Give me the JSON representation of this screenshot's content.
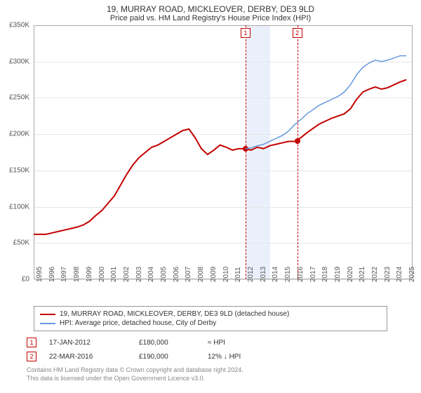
{
  "title": "19, MURRAY ROAD, MICKLEOVER, DERBY, DE3 9LD",
  "subtitle": "Price paid vs. HM Land Registry's House Price Index (HPI)",
  "chart": {
    "type": "line",
    "background_color": "#ffffff",
    "grid_color": "#e6e6e6",
    "y": {
      "min": 0,
      "max": 350000,
      "step": 50000,
      "ticks": [
        "£0",
        "£50K",
        "£100K",
        "£150K",
        "£200K",
        "£250K",
        "£300K",
        "£350K"
      ],
      "label_fontsize": 10
    },
    "x": {
      "min": 1995,
      "max": 2025.5,
      "years": [
        1995,
        1996,
        1997,
        1998,
        1999,
        2000,
        2001,
        2002,
        2003,
        2004,
        2005,
        2006,
        2007,
        2008,
        2009,
        2010,
        2011,
        2012,
        2013,
        2014,
        2015,
        2016,
        2017,
        2018,
        2019,
        2020,
        2021,
        2022,
        2023,
        2024,
        2025
      ],
      "label_fontsize": 10
    },
    "shade": {
      "from_year": 2012.05,
      "to_year": 2014.05,
      "color": "#eaf0fb"
    },
    "series": [
      {
        "name": "property",
        "color": "#c40000",
        "width": 2,
        "points": [
          [
            1995,
            62000
          ],
          [
            1995.5,
            62000
          ],
          [
            1996,
            62000
          ],
          [
            1996.5,
            64000
          ],
          [
            1997,
            66000
          ],
          [
            1997.5,
            68000
          ],
          [
            1998,
            70000
          ],
          [
            1998.5,
            72000
          ],
          [
            1999,
            75000
          ],
          [
            1999.5,
            80000
          ],
          [
            2000,
            88000
          ],
          [
            2000.5,
            95000
          ],
          [
            2001,
            105000
          ],
          [
            2001.5,
            115000
          ],
          [
            2002,
            130000
          ],
          [
            2002.5,
            145000
          ],
          [
            2003,
            158000
          ],
          [
            2003.5,
            168000
          ],
          [
            2004,
            175000
          ],
          [
            2004.5,
            182000
          ],
          [
            2005,
            185000
          ],
          [
            2005.5,
            190000
          ],
          [
            2006,
            195000
          ],
          [
            2006.5,
            200000
          ],
          [
            2007,
            205000
          ],
          [
            2007.5,
            207000
          ],
          [
            2008,
            195000
          ],
          [
            2008.5,
            180000
          ],
          [
            2009,
            172000
          ],
          [
            2009.5,
            178000
          ],
          [
            2010,
            185000
          ],
          [
            2010.5,
            182000
          ],
          [
            2011,
            178000
          ],
          [
            2011.5,
            180000
          ],
          [
            2012,
            180000
          ],
          [
            2012.5,
            178000
          ],
          [
            2013,
            182000
          ],
          [
            2013.5,
            180000
          ],
          [
            2014,
            184000
          ],
          [
            2014.5,
            186000
          ],
          [
            2015,
            188000
          ],
          [
            2015.5,
            190000
          ],
          [
            2016,
            190000
          ],
          [
            2016.5,
            195000
          ],
          [
            2017,
            202000
          ],
          [
            2017.5,
            208000
          ],
          [
            2018,
            214000
          ],
          [
            2018.5,
            218000
          ],
          [
            2019,
            222000
          ],
          [
            2019.5,
            225000
          ],
          [
            2020,
            228000
          ],
          [
            2020.5,
            235000
          ],
          [
            2021,
            248000
          ],
          [
            2021.5,
            258000
          ],
          [
            2022,
            262000
          ],
          [
            2022.5,
            265000
          ],
          [
            2023,
            262000
          ],
          [
            2023.5,
            264000
          ],
          [
            2024,
            268000
          ],
          [
            2024.5,
            272000
          ],
          [
            2025,
            275000
          ]
        ]
      },
      {
        "name": "hpi",
        "color": "#6699dd",
        "width": 1.5,
        "start_year": 2012.05,
        "points": [
          [
            2012.05,
            180000
          ],
          [
            2012.5,
            181000
          ],
          [
            2013,
            184000
          ],
          [
            2013.5,
            186000
          ],
          [
            2014,
            190000
          ],
          [
            2014.5,
            194000
          ],
          [
            2015,
            198000
          ],
          [
            2015.5,
            204000
          ],
          [
            2016,
            213000
          ],
          [
            2016.5,
            220000
          ],
          [
            2017,
            228000
          ],
          [
            2017.5,
            234000
          ],
          [
            2018,
            240000
          ],
          [
            2018.5,
            244000
          ],
          [
            2019,
            248000
          ],
          [
            2019.5,
            252000
          ],
          [
            2020,
            258000
          ],
          [
            2020.5,
            268000
          ],
          [
            2021,
            282000
          ],
          [
            2021.5,
            292000
          ],
          [
            2022,
            298000
          ],
          [
            2022.5,
            302000
          ],
          [
            2023,
            300000
          ],
          [
            2023.5,
            302000
          ],
          [
            2024,
            305000
          ],
          [
            2024.5,
            308000
          ],
          [
            2025,
            308000
          ]
        ]
      }
    ],
    "markers": [
      {
        "n": "1",
        "year": 2012.05,
        "price": 180000,
        "color": "#c40000"
      },
      {
        "n": "2",
        "year": 2016.22,
        "price": 190000,
        "color": "#c40000"
      }
    ],
    "dot_color": "#c40000",
    "dot_radius": 4
  },
  "legend": {
    "items": [
      {
        "color": "#c40000",
        "label": "19, MURRAY ROAD, MICKLEOVER, DERBY, DE3 9LD (detached house)"
      },
      {
        "color": "#6699dd",
        "label": "HPI: Average price, detached house, City of Derby"
      }
    ]
  },
  "sales": [
    {
      "n": "1",
      "badge_color": "#c40000",
      "date": "17-JAN-2012",
      "price": "£180,000",
      "rel": "≈ HPI"
    },
    {
      "n": "2",
      "badge_color": "#c40000",
      "date": "22-MAR-2016",
      "price": "£190,000",
      "rel": "12% ↓ HPI"
    }
  ],
  "footer": {
    "line1": "Contains HM Land Registry data © Crown copyright and database right 2024.",
    "line2": "This data is licensed under the Open Government Licence v3.0."
  }
}
